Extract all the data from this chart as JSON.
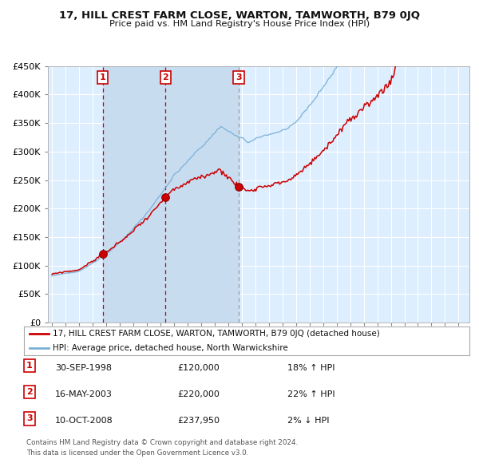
{
  "title": "17, HILL CREST FARM CLOSE, WARTON, TAMWORTH, B79 0JQ",
  "subtitle": "Price paid vs. HM Land Registry's House Price Index (HPI)",
  "ylim": [
    0,
    450000
  ],
  "yticks": [
    0,
    50000,
    100000,
    150000,
    200000,
    250000,
    300000,
    350000,
    400000,
    450000
  ],
  "ytick_labels": [
    "£0",
    "£50K",
    "£100K",
    "£150K",
    "£200K",
    "£250K",
    "£300K",
    "£350K",
    "£400K",
    "£450K"
  ],
  "bg_color": "#ddeeff",
  "grid_color": "#ffffff",
  "red_line_color": "#cc0000",
  "blue_line_color": "#7ab0d4",
  "vline_color_red": "#cc0000",
  "vline_color_gray": "#999999",
  "sale_dates": [
    1998.75,
    2003.37,
    2008.78
  ],
  "sale_prices": [
    120000,
    220000,
    237950
  ],
  "sale_labels": [
    "1",
    "2",
    "3"
  ],
  "transactions": [
    {
      "num": "1",
      "date": "30-SEP-1998",
      "price": "£120,000",
      "hpi": "18% ↑ HPI"
    },
    {
      "num": "2",
      "date": "16-MAY-2003",
      "price": "£220,000",
      "hpi": "22% ↑ HPI"
    },
    {
      "num": "3",
      "date": "10-OCT-2008",
      "price": "£237,950",
      "hpi": "2% ↓ HPI"
    }
  ],
  "legend_entries": [
    "17, HILL CREST FARM CLOSE, WARTON, TAMWORTH, B79 0JQ (detached house)",
    "HPI: Average price, detached house, North Warwickshire"
  ],
  "footer1": "Contains HM Land Registry data © Crown copyright and database right 2024.",
  "footer2": "This data is licensed under the Open Government Licence v3.0.",
  "xstart": 1995,
  "xend": 2025
}
